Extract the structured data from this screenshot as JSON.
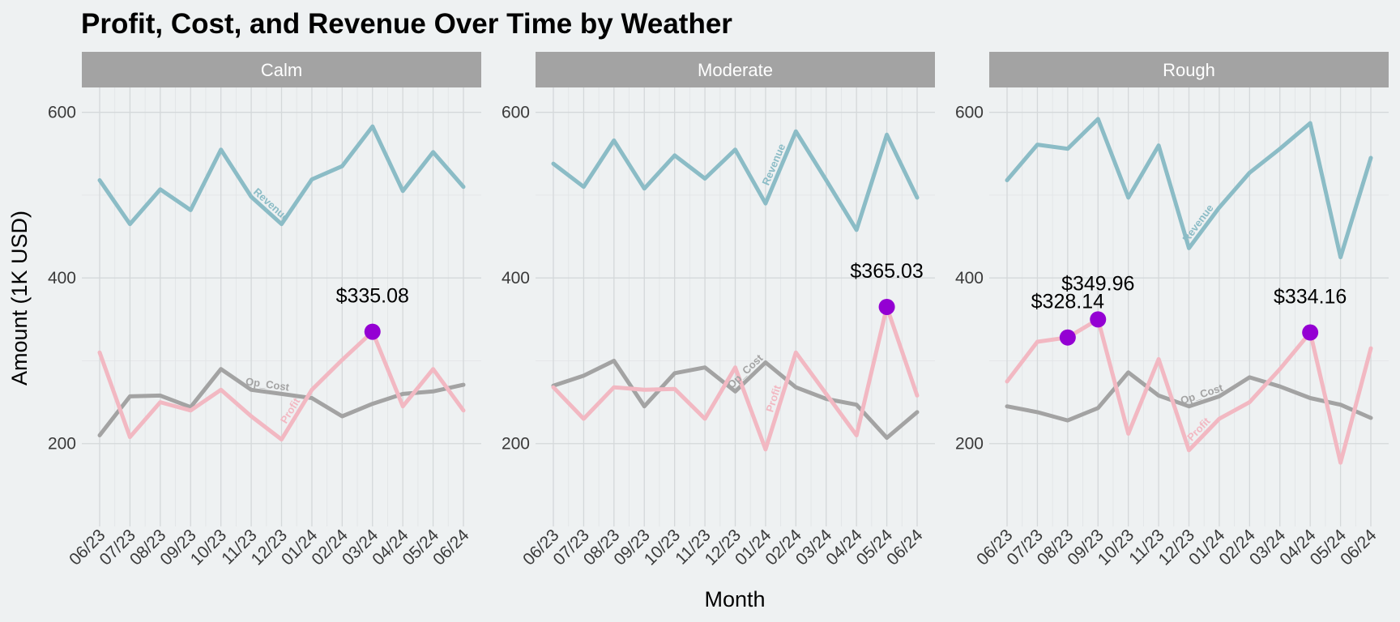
{
  "chart_data": {
    "type": "line",
    "title": "Profit, Cost, and Revenue Over Time by Weather",
    "xlabel": "Month",
    "ylabel": "Amount (1K USD)",
    "ylim": [
      100,
      630
    ],
    "yticks": [
      200,
      400,
      600
    ],
    "categories": [
      "06/23",
      "07/23",
      "08/23",
      "09/23",
      "10/23",
      "11/23",
      "12/23",
      "01/24",
      "02/24",
      "03/24",
      "04/24",
      "05/24",
      "06/24"
    ],
    "colors": {
      "Revenue": "#8BBCC6",
      "Op_Cost": "#A3A3A3",
      "Profit": "#F2B8C2",
      "highlight": "#9400D3"
    },
    "panels": [
      {
        "name": "Calm",
        "series": [
          {
            "name": "Revenue",
            "values": [
              518,
              465,
              507,
              482,
              555,
              498,
              465,
              519,
              535,
              583,
              505,
              552,
              510
            ]
          },
          {
            "name": "Op_Cost",
            "values": [
              210,
              257,
              258,
              244,
              290,
              265,
              260,
              255,
              233,
              248,
              260,
              263,
              271
            ]
          },
          {
            "name": "Profit",
            "values": [
              310,
              208,
              250,
              240,
              265,
              233,
              205,
              265,
              301,
              335.08,
              245,
              290,
              240
            ]
          }
        ],
        "highlights": [
          {
            "x": "03/24",
            "value": 335.08,
            "label": "$335.08"
          }
        ],
        "line_labels": [
          {
            "text": "Revenue",
            "series": "Revenue",
            "x": "11/23"
          },
          {
            "text": "Op_Cost",
            "series": "Op_Cost",
            "x": "11/23"
          },
          {
            "text": "Profit",
            "series": "Profit",
            "x": "12/23"
          }
        ]
      },
      {
        "name": "Moderate",
        "series": [
          {
            "name": "Revenue",
            "values": [
              538,
              510,
              566,
              508,
              548,
              520,
              555,
              490,
              577,
              518,
              458,
              573,
              497
            ]
          },
          {
            "name": "Op_Cost",
            "values": [
              270,
              282,
              300,
              245,
              285,
              292,
              263,
              298,
              268,
              254,
              247,
              207,
              238
            ]
          },
          {
            "name": "Profit",
            "values": [
              268,
              230,
              268,
              265,
              266,
              230,
              292,
              193,
              310,
              260,
              210,
              365.03,
              258
            ]
          }
        ],
        "highlights": [
          {
            "x": "05/24",
            "value": 365.03,
            "label": "$365.03"
          }
        ],
        "line_labels": [
          {
            "text": "Revenue",
            "series": "Revenue",
            "x": "01/24"
          },
          {
            "text": "Op_Cost",
            "series": "Op_Cost",
            "x": "12/23"
          },
          {
            "text": "Profit",
            "series": "Profit",
            "x": "01/24"
          }
        ]
      },
      {
        "name": "Rough",
        "series": [
          {
            "name": "Revenue",
            "values": [
              518,
              561,
              556,
              592,
              497,
              560,
              436,
              485,
              527,
              556,
              587,
              425,
              545
            ]
          },
          {
            "name": "Op_Cost",
            "values": [
              245,
              238,
              228,
              243,
              286,
              258,
              245,
              257,
              280,
              269,
              255,
              247,
              231
            ]
          },
          {
            "name": "Profit",
            "values": [
              275,
              323,
              328.14,
              349.96,
              212,
              302,
              192,
              230,
              250,
              290,
              334.16,
              177,
              315
            ]
          }
        ],
        "highlights": [
          {
            "x": "08/23",
            "value": 328.14,
            "label": "$328.14"
          },
          {
            "x": "09/23",
            "value": 349.96,
            "label": "$349.96"
          },
          {
            "x": "04/24",
            "value": 334.16,
            "label": "$334.16"
          }
        ],
        "line_labels": [
          {
            "text": "Revenue",
            "series": "Revenue",
            "x": "12/23"
          },
          {
            "text": "Op_Cost",
            "series": "Op_Cost",
            "x": "12/23"
          },
          {
            "text": "Profit",
            "series": "Profit",
            "x": "12/23"
          }
        ]
      }
    ]
  }
}
